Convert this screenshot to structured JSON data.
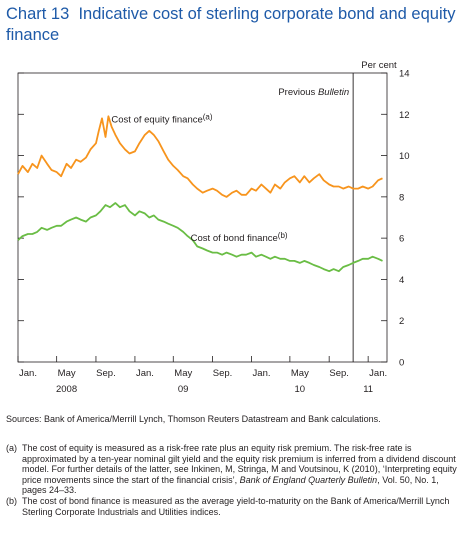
{
  "header": {
    "number": "Chart 13",
    "title": "Indicative cost of sterling corporate bond and equity finance"
  },
  "chart_data": {
    "type": "line",
    "y_unit": "Per cent",
    "ylim": [
      0,
      14
    ],
    "yticks": [
      0,
      2,
      4,
      6,
      8,
      10,
      12,
      14
    ],
    "x_range": [
      "2008-01-01",
      "2011-03-01"
    ],
    "x_tick_labels": [
      "Jan.",
      "May",
      "Sep.",
      "Jan.",
      "May",
      "Sep.",
      "Jan.",
      "May",
      "Sep.",
      "Jan."
    ],
    "x_year_labels": [
      {
        "label": "2008",
        "at": "2008-06-01"
      },
      {
        "label": "09",
        "at": "2009-06-01"
      },
      {
        "label": "10",
        "at": "2010-06-01"
      },
      {
        "label": "11",
        "at": "2011-01-01"
      }
    ],
    "annotation": {
      "label": "Previous Bulletin",
      "date": "2010-11-15"
    },
    "series": [
      {
        "name": "Cost of equity finance",
        "note": "(a)",
        "color": "#f7941d",
        "points": [
          [
            "2008-01-01",
            9.1
          ],
          [
            "2008-01-15",
            9.5
          ],
          [
            "2008-02-01",
            9.2
          ],
          [
            "2008-02-15",
            9.6
          ],
          [
            "2008-03-01",
            9.4
          ],
          [
            "2008-03-15",
            10.0
          ],
          [
            "2008-04-01",
            9.6
          ],
          [
            "2008-04-15",
            9.3
          ],
          [
            "2008-05-01",
            9.2
          ],
          [
            "2008-05-15",
            9.0
          ],
          [
            "2008-06-01",
            9.6
          ],
          [
            "2008-06-15",
            9.4
          ],
          [
            "2008-07-01",
            9.8
          ],
          [
            "2008-07-15",
            9.7
          ],
          [
            "2008-08-01",
            9.9
          ],
          [
            "2008-08-15",
            10.3
          ],
          [
            "2008-09-01",
            10.6
          ],
          [
            "2008-09-10",
            11.2
          ],
          [
            "2008-09-20",
            11.8
          ],
          [
            "2008-10-01",
            10.9
          ],
          [
            "2008-10-10",
            11.9
          ],
          [
            "2008-10-20",
            11.4
          ],
          [
            "2008-11-01",
            11.0
          ],
          [
            "2008-11-15",
            10.6
          ],
          [
            "2008-12-01",
            10.3
          ],
          [
            "2008-12-15",
            10.1
          ],
          [
            "2009-01-01",
            10.2
          ],
          [
            "2009-01-15",
            10.6
          ],
          [
            "2009-02-01",
            11.0
          ],
          [
            "2009-02-15",
            11.2
          ],
          [
            "2009-03-01",
            11.0
          ],
          [
            "2009-03-15",
            10.7
          ],
          [
            "2009-04-01",
            10.2
          ],
          [
            "2009-04-15",
            9.8
          ],
          [
            "2009-05-01",
            9.5
          ],
          [
            "2009-05-15",
            9.3
          ],
          [
            "2009-06-01",
            9.0
          ],
          [
            "2009-06-15",
            8.9
          ],
          [
            "2009-07-01",
            8.6
          ],
          [
            "2009-07-15",
            8.4
          ],
          [
            "2009-08-01",
            8.2
          ],
          [
            "2009-08-15",
            8.3
          ],
          [
            "2009-09-01",
            8.4
          ],
          [
            "2009-09-15",
            8.3
          ],
          [
            "2009-10-01",
            8.1
          ],
          [
            "2009-10-15",
            8.0
          ],
          [
            "2009-11-01",
            8.2
          ],
          [
            "2009-11-15",
            8.3
          ],
          [
            "2009-12-01",
            8.1
          ],
          [
            "2009-12-15",
            8.1
          ],
          [
            "2010-01-01",
            8.4
          ],
          [
            "2010-01-15",
            8.3
          ],
          [
            "2010-02-01",
            8.6
          ],
          [
            "2010-02-15",
            8.4
          ],
          [
            "2010-03-01",
            8.2
          ],
          [
            "2010-03-15",
            8.6
          ],
          [
            "2010-04-01",
            8.4
          ],
          [
            "2010-04-15",
            8.7
          ],
          [
            "2010-05-01",
            8.9
          ],
          [
            "2010-05-15",
            9.0
          ],
          [
            "2010-06-01",
            8.7
          ],
          [
            "2010-06-15",
            9.0
          ],
          [
            "2010-07-01",
            8.7
          ],
          [
            "2010-07-15",
            8.9
          ],
          [
            "2010-08-01",
            9.1
          ],
          [
            "2010-08-15",
            8.8
          ],
          [
            "2010-09-01",
            8.6
          ],
          [
            "2010-09-15",
            8.5
          ],
          [
            "2010-10-01",
            8.5
          ],
          [
            "2010-10-15",
            8.4
          ],
          [
            "2010-11-01",
            8.5
          ],
          [
            "2010-11-15",
            8.4
          ],
          [
            "2010-12-01",
            8.4
          ],
          [
            "2010-12-15",
            8.5
          ],
          [
            "2011-01-01",
            8.4
          ],
          [
            "2011-01-15",
            8.5
          ],
          [
            "2011-02-01",
            8.8
          ],
          [
            "2011-02-15",
            8.9
          ]
        ]
      },
      {
        "name": "Cost of bond finance",
        "note": "(b)",
        "color": "#6abd45",
        "points": [
          [
            "2008-01-01",
            5.9
          ],
          [
            "2008-01-15",
            6.1
          ],
          [
            "2008-02-01",
            6.2
          ],
          [
            "2008-02-15",
            6.2
          ],
          [
            "2008-03-01",
            6.3
          ],
          [
            "2008-03-15",
            6.5
          ],
          [
            "2008-04-01",
            6.4
          ],
          [
            "2008-04-15",
            6.5
          ],
          [
            "2008-05-01",
            6.6
          ],
          [
            "2008-05-15",
            6.6
          ],
          [
            "2008-06-01",
            6.8
          ],
          [
            "2008-06-15",
            6.9
          ],
          [
            "2008-07-01",
            7.0
          ],
          [
            "2008-07-15",
            6.9
          ],
          [
            "2008-08-01",
            6.8
          ],
          [
            "2008-08-15",
            7.0
          ],
          [
            "2008-09-01",
            7.1
          ],
          [
            "2008-09-15",
            7.3
          ],
          [
            "2008-10-01",
            7.6
          ],
          [
            "2008-10-15",
            7.5
          ],
          [
            "2008-11-01",
            7.7
          ],
          [
            "2008-11-15",
            7.5
          ],
          [
            "2008-12-01",
            7.6
          ],
          [
            "2008-12-15",
            7.3
          ],
          [
            "2009-01-01",
            7.1
          ],
          [
            "2009-01-15",
            7.3
          ],
          [
            "2009-02-01",
            7.2
          ],
          [
            "2009-02-15",
            7.0
          ],
          [
            "2009-03-01",
            7.1
          ],
          [
            "2009-03-15",
            6.9
          ],
          [
            "2009-04-01",
            6.8
          ],
          [
            "2009-04-15",
            6.7
          ],
          [
            "2009-05-01",
            6.6
          ],
          [
            "2009-05-15",
            6.5
          ],
          [
            "2009-06-01",
            6.3
          ],
          [
            "2009-06-15",
            6.1
          ],
          [
            "2009-07-01",
            5.9
          ],
          [
            "2009-07-15",
            5.6
          ],
          [
            "2009-08-01",
            5.5
          ],
          [
            "2009-08-15",
            5.4
          ],
          [
            "2009-09-01",
            5.3
          ],
          [
            "2009-09-15",
            5.3
          ],
          [
            "2009-10-01",
            5.2
          ],
          [
            "2009-10-15",
            5.3
          ],
          [
            "2009-11-01",
            5.2
          ],
          [
            "2009-11-15",
            5.1
          ],
          [
            "2009-12-01",
            5.2
          ],
          [
            "2009-12-15",
            5.2
          ],
          [
            "2010-01-01",
            5.3
          ],
          [
            "2010-01-15",
            5.1
          ],
          [
            "2010-02-01",
            5.2
          ],
          [
            "2010-02-15",
            5.1
          ],
          [
            "2010-03-01",
            5.0
          ],
          [
            "2010-03-15",
            5.1
          ],
          [
            "2010-04-01",
            5.0
          ],
          [
            "2010-04-15",
            5.0
          ],
          [
            "2010-05-01",
            4.9
          ],
          [
            "2010-05-15",
            4.9
          ],
          [
            "2010-06-01",
            4.8
          ],
          [
            "2010-06-15",
            4.9
          ],
          [
            "2010-07-01",
            4.8
          ],
          [
            "2010-07-15",
            4.7
          ],
          [
            "2010-08-01",
            4.6
          ],
          [
            "2010-08-15",
            4.5
          ],
          [
            "2010-09-01",
            4.4
          ],
          [
            "2010-09-15",
            4.5
          ],
          [
            "2010-10-01",
            4.4
          ],
          [
            "2010-10-15",
            4.6
          ],
          [
            "2010-11-01",
            4.7
          ],
          [
            "2010-11-15",
            4.8
          ],
          [
            "2010-12-01",
            4.9
          ],
          [
            "2010-12-15",
            5.0
          ],
          [
            "2011-01-01",
            5.0
          ],
          [
            "2011-01-15",
            5.1
          ],
          [
            "2011-02-01",
            5.0
          ],
          [
            "2011-02-15",
            4.9
          ]
        ]
      }
    ]
  },
  "sources": "Sources: Bank of America/Merrill Lynch, Thomson Reuters Datastream and Bank calculations.",
  "footnotes": [
    {
      "label": "(a)",
      "text": "The cost of equity is measured as a risk-free rate plus an equity risk premium. The risk-free rate is approximated by a ten-year nominal gilt yield and the equity risk premium is inferred from a dividend discount model. For further details of the latter, see Inkinen, M, Stringa, M and Voutsinou, K (2010), ‘Interpreting equity price movements since the start of the financial crisis’, ",
      "italic": "Bank of England Quarterly Bulletin",
      "after": ", Vol. 50, No. 1, pages 24–33."
    },
    {
      "label": "(b)",
      "text": "The cost of bond finance is measured as the average yield-to-maturity on the Bank of America/Merrill Lynch Sterling Corporate Industrials and Utilities indices."
    }
  ]
}
